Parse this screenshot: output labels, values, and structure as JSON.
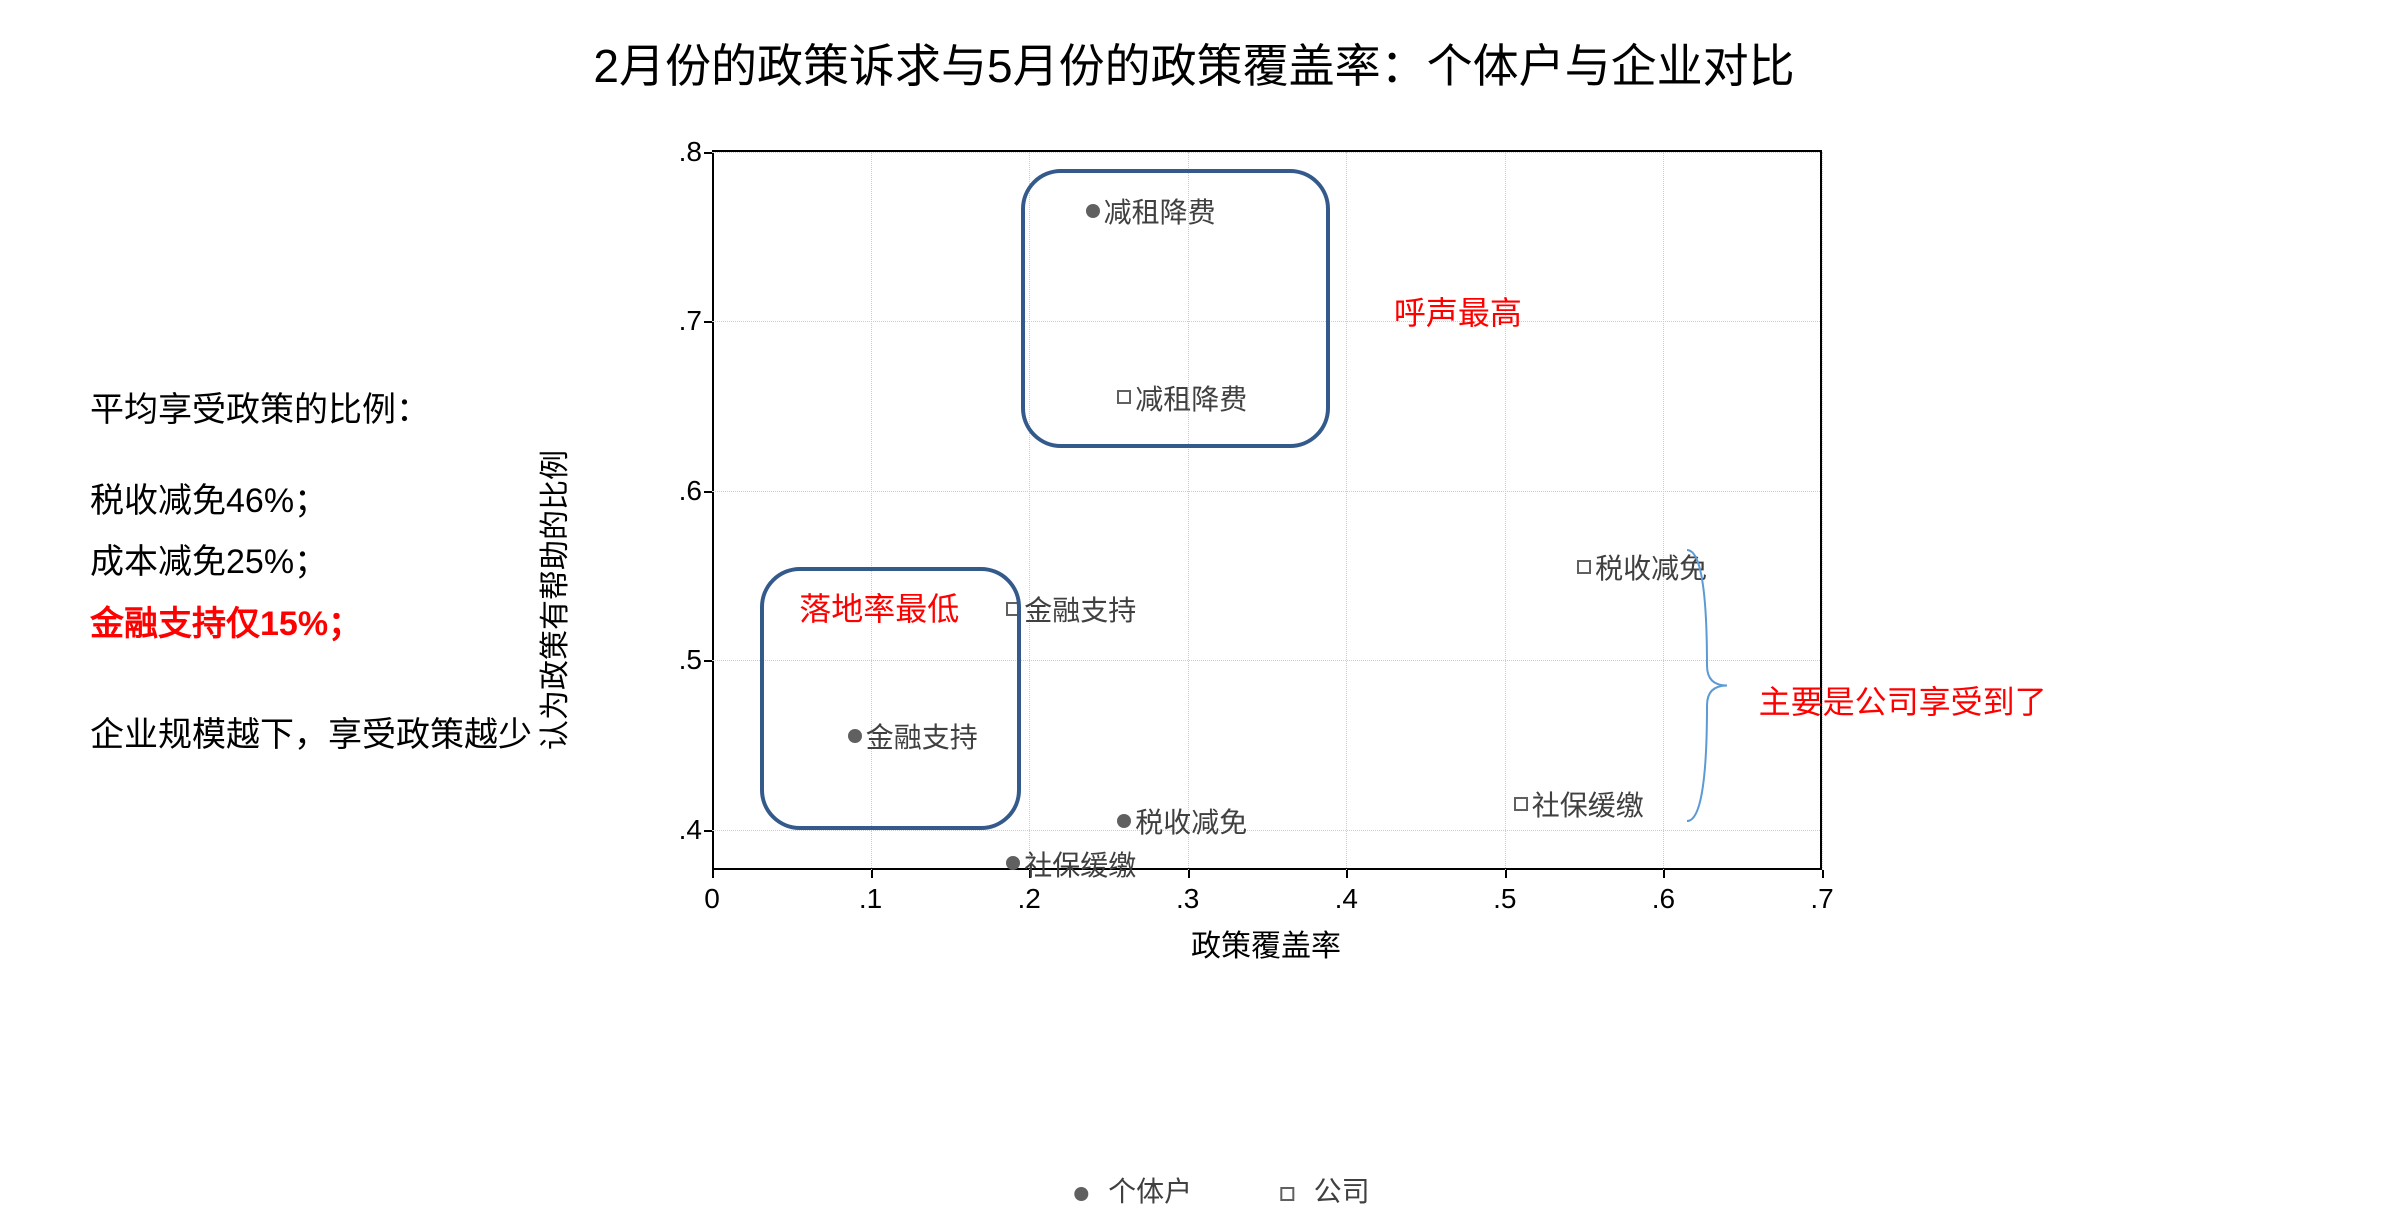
{
  "title": "2月份的政策诉求与5月份的政策覆盖率：个体户与企业对比",
  "sidebar": {
    "line1": "平均享受政策的比例：",
    "line2": "税收减免46%；",
    "line3": "成本减免25%；",
    "line4": "金融支持仅15%；",
    "line5": "企业规模越下，享受政策越少"
  },
  "chart": {
    "type": "scatter",
    "xlabel": "政策覆盖率",
    "ylabel": "认为政策有帮助的比例",
    "xlim": [
      0,
      0.7
    ],
    "ylim": [
      0.375,
      0.8
    ],
    "xticks": [
      0,
      0.1,
      0.2,
      0.3,
      0.4,
      0.5,
      0.6,
      0.7
    ],
    "xtick_labels": [
      "0",
      ".1",
      ".2",
      ".3",
      ".4",
      ".5",
      ".6",
      ".7"
    ],
    "yticks": [
      0.4,
      0.5,
      0.6,
      0.7,
      0.8
    ],
    "ytick_labels": [
      ".4",
      ".5",
      ".6",
      ".7",
      ".8"
    ],
    "grid_color": "#cccccc",
    "axis_color": "#000000",
    "background_color": "#ffffff",
    "series": [
      {
        "name": "个体户",
        "marker": "circle",
        "marker_color": "#606060",
        "points": [
          {
            "x": 0.24,
            "y": 0.765,
            "label": "减租降费"
          },
          {
            "x": 0.09,
            "y": 0.455,
            "label": "金融支持"
          },
          {
            "x": 0.26,
            "y": 0.405,
            "label": "税收减免"
          },
          {
            "x": 0.19,
            "y": 0.38,
            "label": "社保缓缴"
          }
        ]
      },
      {
        "name": "公司",
        "marker": "square",
        "marker_color": "#606060",
        "points": [
          {
            "x": 0.26,
            "y": 0.655,
            "label": "减租降费"
          },
          {
            "x": 0.19,
            "y": 0.53,
            "label": "金融支持"
          },
          {
            "x": 0.55,
            "y": 0.555,
            "label": "税收减免"
          },
          {
            "x": 0.51,
            "y": 0.415,
            "label": "社保缓缴"
          }
        ]
      }
    ],
    "annotations": {
      "box1": {
        "label": "呼声最高",
        "color": "#ff0000",
        "border_color": "#335a8a"
      },
      "box2": {
        "label": "落地率最低",
        "color": "#ff0000",
        "border_color": "#335a8a"
      },
      "brace_label": "主要是公司享受到了"
    },
    "legend": {
      "items": [
        "个体户",
        "公司"
      ]
    }
  }
}
